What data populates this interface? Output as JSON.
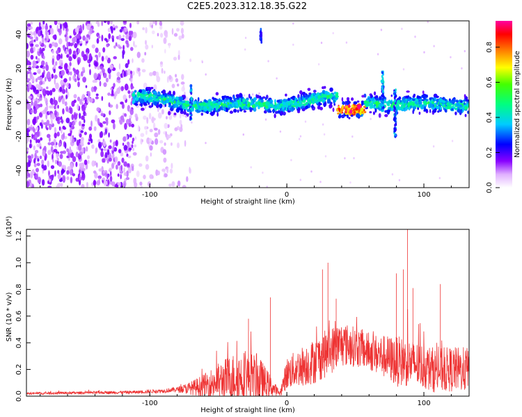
{
  "figure_title": "C2E5.2023.312.18.35.G22",
  "chart_data": [
    {
      "type": "heatmap",
      "xlabel": "Height of straight line (km)",
      "ylabel": "Frequency (Hz)",
      "xlim": [
        -190,
        133
      ],
      "ylim": [
        -50,
        48
      ],
      "x_ticks": [
        -100,
        0,
        100
      ],
      "y_ticks": [
        -40,
        -20,
        0,
        20,
        40
      ],
      "grid": false,
      "colorbar": {
        "label": "Normalized spectral amplitude",
        "range": [
          0,
          0.95
        ],
        "ticks": [
          "0.0",
          "0.2",
          "0.4",
          "0.6",
          "0.8"
        ],
        "colormap": [
          "#ffffff",
          "#a000ff",
          "#0000ff",
          "#00e0ff",
          "#00ff00",
          "#ffff00",
          "#ff8000",
          "#ff0000",
          "#ff00a0"
        ]
      },
      "features": {
        "noise_region_x": [
          -190,
          -75
        ],
        "signal_band_center_hz": 0,
        "signal_band_x": [
          -112,
          133
        ],
        "peak_amplitude_segment_x": [
          37,
          57
        ],
        "peak_frequency_hz": -4,
        "isolated_feature_x": -19,
        "isolated_feature_hz": 39
      }
    },
    {
      "type": "line",
      "xlabel": "Height of straight line (km)",
      "ylabel": "SNR (10 * v/v)",
      "y_multiplier": "(x10⁴)",
      "xlim": [
        -190,
        133
      ],
      "ylim": [
        0,
        1.25
      ],
      "x_ticks": [
        -100,
        0,
        100
      ],
      "y_ticks": [
        "0.0",
        "0.2",
        "0.4",
        "0.6",
        "0.8",
        "1.0",
        "1.2"
      ],
      "color": "#ee3333",
      "grid": false,
      "envelope": {
        "x": [
          -190,
          -150,
          -110,
          -90,
          -80,
          -70,
          -60,
          -50,
          -40,
          -30,
          -20,
          -10,
          -5,
          0,
          10,
          20,
          30,
          40,
          50,
          60,
          70,
          80,
          90,
          100,
          110,
          120,
          133
        ],
        "base": [
          0.02,
          0.025,
          0.03,
          0.04,
          0.05,
          0.06,
          0.08,
          0.11,
          0.14,
          0.15,
          0.12,
          0.06,
          0.02,
          0.17,
          0.22,
          0.26,
          0.33,
          0.39,
          0.37,
          0.33,
          0.3,
          0.26,
          0.25,
          0.22,
          0.19,
          0.2,
          0.2
        ],
        "amplitude": [
          0.008,
          0.01,
          0.012,
          0.015,
          0.02,
          0.05,
          0.09,
          0.14,
          0.18,
          0.2,
          0.18,
          0.06,
          0.02,
          0.12,
          0.15,
          0.17,
          0.18,
          0.17,
          0.15,
          0.14,
          0.16,
          0.19,
          0.18,
          0.17,
          0.17,
          0.17,
          0.17
        ]
      },
      "spikes": [
        {
          "x": -28,
          "y": 0.58
        },
        {
          "x": -12,
          "y": 0.74
        },
        {
          "x": 26,
          "y": 0.95
        },
        {
          "x": 30,
          "y": 1.0
        },
        {
          "x": 36,
          "y": 0.73
        },
        {
          "x": 80,
          "y": 0.92
        },
        {
          "x": 85,
          "y": 0.95
        },
        {
          "x": 88,
          "y": 1.25
        },
        {
          "x": 92,
          "y": 0.81
        },
        {
          "x": 112,
          "y": 0.84
        }
      ]
    }
  ]
}
